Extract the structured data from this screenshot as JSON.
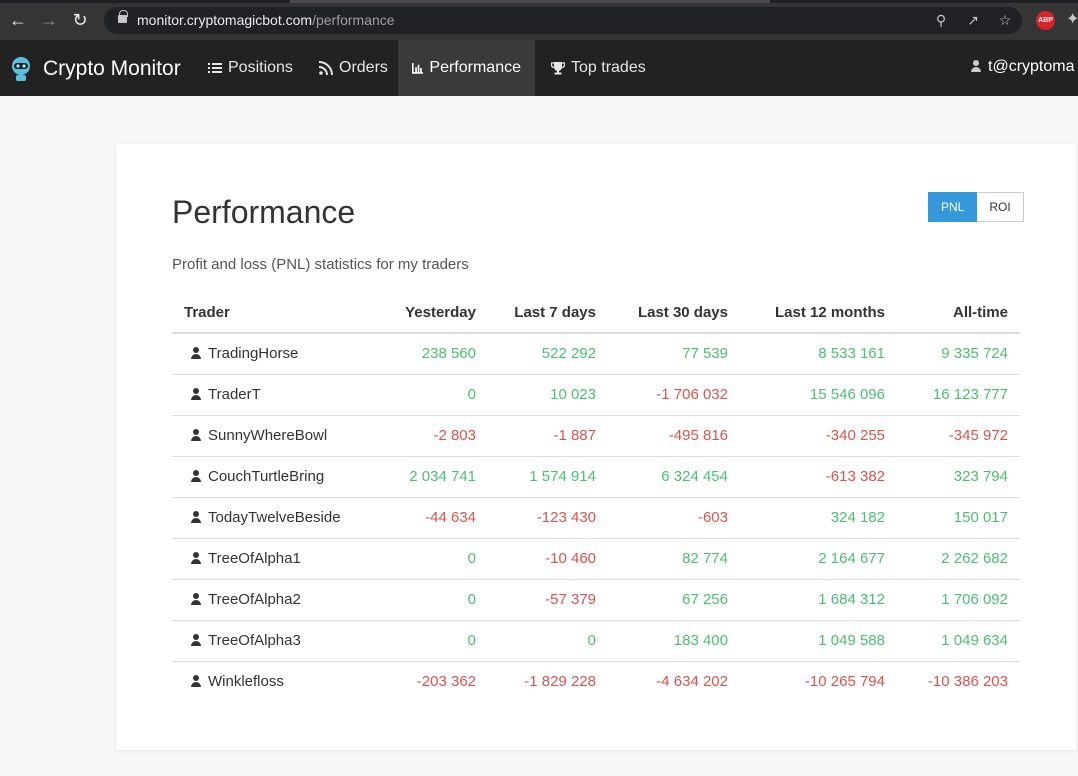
{
  "browser": {
    "url_host": "monitor.cryptomagicbot.com",
    "url_path": "/performance",
    "abp_label": "ABP",
    "icons": [
      "back-arrow-icon",
      "forward-arrow-icon",
      "reload-icon",
      "lock-icon",
      "key-icon",
      "share-icon",
      "star-icon",
      "adblock-icon",
      "puzzle-icon"
    ]
  },
  "navbar": {
    "brand": "Crypto Monitor",
    "items": [
      {
        "label": "Positions",
        "icon": "list-icon"
      },
      {
        "label": "Orders",
        "icon": "rss-icon"
      },
      {
        "label": "Performance",
        "icon": "bar-chart-icon",
        "active": true
      },
      {
        "label": "Top trades",
        "icon": "trophy-icon"
      }
    ],
    "user": "t@cryptoma"
  },
  "page": {
    "title": "Performance",
    "subtitle": "Profit and loss (PNL) statistics for my traders",
    "toggle": {
      "pnl": "PNL",
      "roi": "ROI",
      "selected": "PNL"
    }
  },
  "table": {
    "headers": [
      "Trader",
      "Yesterday",
      "Last 7 days",
      "Last 30 days",
      "Last 12 months",
      "All-time"
    ],
    "rows": [
      {
        "trader": "TradingHorse",
        "values": [
          "238 560",
          "522 292",
          "77 539",
          "8 533 161",
          "9 335 724"
        ]
      },
      {
        "trader": "TraderT",
        "values": [
          "0",
          "10 023",
          "-1 706 032",
          "15 546 096",
          "16 123 777"
        ]
      },
      {
        "trader": "SunnyWhereBowl",
        "values": [
          "-2 803",
          "-1 887",
          "-495 816",
          "-340 255",
          "-345 972"
        ]
      },
      {
        "trader": "CouchTurtleBring",
        "values": [
          "2 034 741",
          "1 574 914",
          "6 324 454",
          "-613 382",
          "323 794"
        ]
      },
      {
        "trader": "TodayTwelveBeside",
        "values": [
          "-44 634",
          "-123 430",
          "-603",
          "324 182",
          "150 017"
        ]
      },
      {
        "trader": "TreeOfAlpha1",
        "values": [
          "0",
          "-10 460",
          "82 774",
          "2 164 677",
          "2 262 682"
        ]
      },
      {
        "trader": "TreeOfAlpha2",
        "values": [
          "0",
          "-57 379",
          "67 256",
          "1 684 312",
          "1 706 092"
        ]
      },
      {
        "trader": "TreeOfAlpha3",
        "values": [
          "0",
          "0",
          "183 400",
          "1 049 588",
          "1 049 634"
        ]
      },
      {
        "trader": "Winklefloss",
        "values": [
          "-203 362",
          "-1 829 228",
          "-4 634 202",
          "-10 265 794",
          "-10 386 203"
        ]
      }
    ]
  },
  "colors": {
    "positive": "#4bbf73",
    "negative": "#d9534f",
    "accent": "#3498db",
    "navbar": "#222222"
  }
}
